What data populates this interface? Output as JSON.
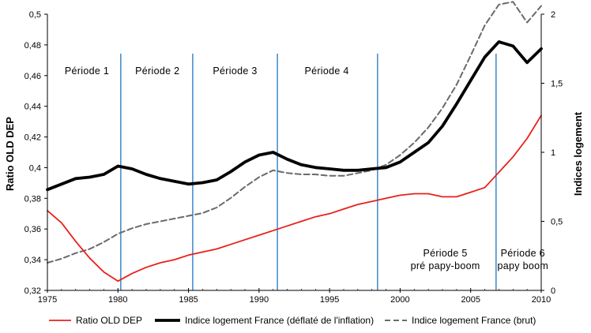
{
  "chart_data": {
    "type": "line",
    "title": "",
    "xlabel": "",
    "ylabel": "Ratio OLD DEP",
    "y2label": "Indices logement",
    "xlim": [
      1975,
      2010
    ],
    "ylim": [
      0.32,
      0.5
    ],
    "y2lim": [
      0,
      2.0
    ],
    "x_ticks": [
      "1975",
      "1980",
      "1985",
      "1990",
      "1995",
      "2000",
      "2005",
      "2010"
    ],
    "y_ticks": [
      "0,32",
      "0,34",
      "0,36",
      "0,38",
      "0,4",
      "0,42",
      "0,44",
      "0,46",
      "0,48",
      "0,5"
    ],
    "y2_ticks": [
      "0",
      "0,5",
      "1",
      "1,5",
      "2"
    ],
    "grid": false,
    "legend_position": "bottom",
    "period_dividers": [
      1980.2,
      1985.3,
      1991.3,
      1998.4,
      2006.8
    ],
    "periods": [
      {
        "label": "Période 1",
        "x": 1977.8,
        "y": 0.461
      },
      {
        "label": "Période 2",
        "x": 1982.8,
        "y": 0.461
      },
      {
        "label": "Période 3",
        "x": 1988.3,
        "y": 0.461
      },
      {
        "label": "Période 4",
        "x": 1994.8,
        "y": 0.461
      },
      {
        "label": "Période 5",
        "sublabel": "pré papy-boom",
        "x": 2003.2,
        "y": 0.342
      },
      {
        "label": "Période 6",
        "sublabel": "papy boom",
        "x": 2008.7,
        "y": 0.342
      }
    ],
    "series": [
      {
        "name": "Ratio OLD DEP",
        "axis": "left",
        "color": "#e8201a",
        "style": "solid",
        "x": [
          1975,
          1976,
          1977,
          1978,
          1979,
          1980,
          1981,
          1982,
          1983,
          1984,
          1985,
          1986,
          1987,
          1988,
          1989,
          1990,
          1991,
          1992,
          1993,
          1994,
          1995,
          1996,
          1997,
          1998,
          1999,
          2000,
          2001,
          2002,
          2003,
          2004,
          2005,
          2006,
          2007,
          2008,
          2009,
          2010
        ],
        "values": [
          0.372,
          0.364,
          0.352,
          0.341,
          0.332,
          0.326,
          0.331,
          0.335,
          0.338,
          0.34,
          0.343,
          0.345,
          0.347,
          0.35,
          0.353,
          0.356,
          0.359,
          0.362,
          0.365,
          0.368,
          0.37,
          0.373,
          0.376,
          0.378,
          0.38,
          0.382,
          0.383,
          0.383,
          0.381,
          0.381,
          0.384,
          0.387,
          0.397,
          0.407,
          0.419,
          0.434
        ]
      },
      {
        "name": "Indice logement France (déflaté de l'inflation)",
        "axis": "right",
        "color": "#000000",
        "style": "solid-thick",
        "x": [
          1975,
          1976,
          1977,
          1978,
          1979,
          1980,
          1981,
          1982,
          1983,
          1984,
          1985,
          1986,
          1987,
          1988,
          1989,
          1990,
          1991,
          1992,
          1993,
          1994,
          1995,
          1996,
          1997,
          1998,
          1999,
          2000,
          2001,
          2002,
          2003,
          2004,
          2005,
          2006,
          2007,
          2008,
          2009,
          2010
        ],
        "values": [
          0.73,
          0.77,
          0.81,
          0.82,
          0.84,
          0.9,
          0.88,
          0.84,
          0.81,
          0.79,
          0.77,
          0.78,
          0.8,
          0.86,
          0.93,
          0.98,
          1.0,
          0.95,
          0.91,
          0.89,
          0.88,
          0.87,
          0.87,
          0.88,
          0.89,
          0.93,
          1.0,
          1.07,
          1.19,
          1.35,
          1.52,
          1.69,
          1.8,
          1.77,
          1.65,
          1.75
        ]
      },
      {
        "name": "Indice logement France (brut)",
        "axis": "right",
        "color": "#6a6a6a",
        "style": "dashed",
        "x": [
          1975,
          1976,
          1977,
          1978,
          1979,
          1980,
          1981,
          1982,
          1983,
          1984,
          1985,
          1986,
          1987,
          1988,
          1989,
          1990,
          1991,
          1992,
          1993,
          1994,
          1995,
          1996,
          1997,
          1998,
          1999,
          2000,
          2001,
          2002,
          2003,
          2004,
          2005,
          2006,
          2007,
          2008,
          2009,
          2010
        ],
        "values": [
          0.2,
          0.23,
          0.27,
          0.3,
          0.35,
          0.41,
          0.45,
          0.48,
          0.5,
          0.52,
          0.54,
          0.56,
          0.6,
          0.67,
          0.75,
          0.82,
          0.87,
          0.85,
          0.84,
          0.84,
          0.83,
          0.83,
          0.85,
          0.87,
          0.91,
          0.98,
          1.07,
          1.18,
          1.32,
          1.49,
          1.7,
          1.92,
          2.07,
          2.09,
          1.94,
          2.06
        ]
      }
    ]
  }
}
